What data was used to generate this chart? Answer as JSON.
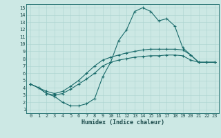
{
  "xlabel": "Humidex (Indice chaleur)",
  "bg_color": "#cce8e4",
  "grid_color": "#aad4d0",
  "line_color": "#1a6b6b",
  "xlim": [
    -0.5,
    23.5
  ],
  "ylim": [
    0.5,
    15.5
  ],
  "xticks": [
    0,
    1,
    2,
    3,
    4,
    5,
    6,
    7,
    8,
    9,
    10,
    11,
    12,
    13,
    14,
    15,
    16,
    17,
    18,
    19,
    20,
    21,
    22,
    23
  ],
  "yticks": [
    1,
    2,
    3,
    4,
    5,
    6,
    7,
    8,
    9,
    10,
    11,
    12,
    13,
    14,
    15
  ],
  "line1_x": [
    0,
    1,
    2,
    3,
    4,
    5,
    6,
    7,
    8,
    9,
    10,
    11,
    12,
    13,
    14,
    15,
    16,
    17,
    18,
    19,
    20,
    21,
    22,
    23
  ],
  "line1_y": [
    4.5,
    4.0,
    3.2,
    2.8,
    2.0,
    1.5,
    1.5,
    1.8,
    2.5,
    5.5,
    7.5,
    10.5,
    12.0,
    14.5,
    15.0,
    14.5,
    13.2,
    13.5,
    12.5,
    9.5,
    8.5,
    7.5,
    7.5,
    7.5
  ],
  "line2_x": [
    0,
    1,
    2,
    3,
    4,
    5,
    6,
    7,
    8,
    9,
    10,
    11,
    12,
    13,
    14,
    15,
    16,
    17,
    18,
    19,
    20,
    21,
    22,
    23
  ],
  "line2_y": [
    4.5,
    4.0,
    3.5,
    3.2,
    3.5,
    4.2,
    5.0,
    6.0,
    7.0,
    7.8,
    8.2,
    8.5,
    8.8,
    9.0,
    9.2,
    9.3,
    9.3,
    9.3,
    9.3,
    9.2,
    8.5,
    7.5,
    7.5,
    7.5
  ],
  "line3_x": [
    0,
    1,
    2,
    3,
    4,
    5,
    6,
    7,
    8,
    9,
    10,
    11,
    12,
    13,
    14,
    15,
    16,
    17,
    18,
    19,
    20,
    21,
    22,
    23
  ],
  "line3_y": [
    4.5,
    4.0,
    3.2,
    3.0,
    3.2,
    3.8,
    4.5,
    5.2,
    6.0,
    7.0,
    7.5,
    7.8,
    8.0,
    8.2,
    8.3,
    8.4,
    8.4,
    8.5,
    8.5,
    8.4,
    7.8,
    7.5,
    7.5,
    7.5
  ],
  "xlabel_fontsize": 6,
  "tick_fontsize": 5
}
